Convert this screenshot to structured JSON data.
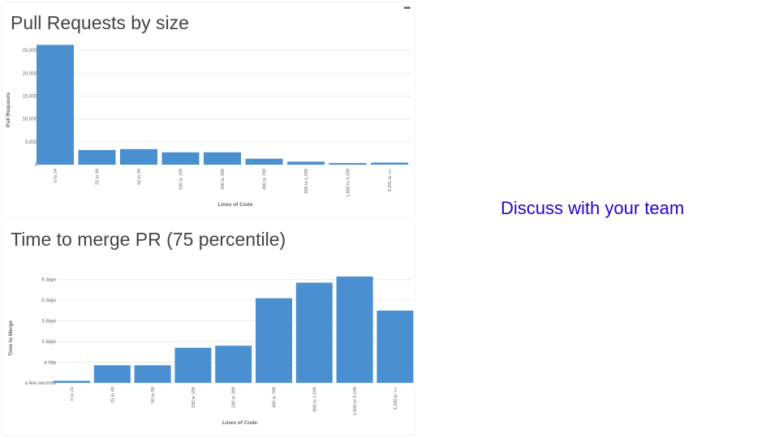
{
  "discuss_text": "Discuss with your team",
  "menu_glyph": "•••",
  "colors": {
    "bar": "#4a90d0",
    "grid": "#ececec",
    "axis_text": "#666666",
    "title": "#444444",
    "discuss": "#2a00c8"
  },
  "chart_data": [
    {
      "type": "bar",
      "title": "Pull Requests by size",
      "xlabel": "Lines of Code",
      "ylabel": "Pull Requests",
      "categories": [
        "0 to 24",
        "25 to 49",
        "50 to 99",
        "100 to 199",
        "200 to 399",
        "400 to 799",
        "800 to 1,599",
        "1,600 to 3,199",
        "3,201 to +∞"
      ],
      "values": [
        26200,
        3200,
        3400,
        2700,
        2700,
        1300,
        650,
        350,
        450
      ],
      "yticks": [
        0,
        5000,
        10000,
        15000,
        20000,
        25000
      ],
      "ytick_labels": [
        "0",
        "5,000",
        "10,000",
        "15,000",
        "20,000",
        "25,000"
      ],
      "ylim": [
        0,
        27500
      ],
      "grid": true
    },
    {
      "type": "bar",
      "title": "Time to merge PR (75 percentile)",
      "xlabel": "Lines of Code",
      "ylabel": "Time to Merge",
      "categories": [
        "0 to 24",
        "25 to 49",
        "50 to 99",
        "100 to 199",
        "200 to 399",
        "400 to 799",
        "800 to 1,599",
        "1,600 to 3,199",
        "3,200 to +∞"
      ],
      "values": [
        0.1,
        0.85,
        0.85,
        1.7,
        1.8,
        4.1,
        4.85,
        5.15,
        3.5
      ],
      "yticks": [
        0,
        1,
        2,
        3,
        4,
        5
      ],
      "ytick_labels": [
        "a few seconds",
        "a day",
        "2 days",
        "3 days",
        "5 days",
        "6 days"
      ],
      "ylim": [
        0,
        5.5
      ],
      "grid": true
    }
  ]
}
